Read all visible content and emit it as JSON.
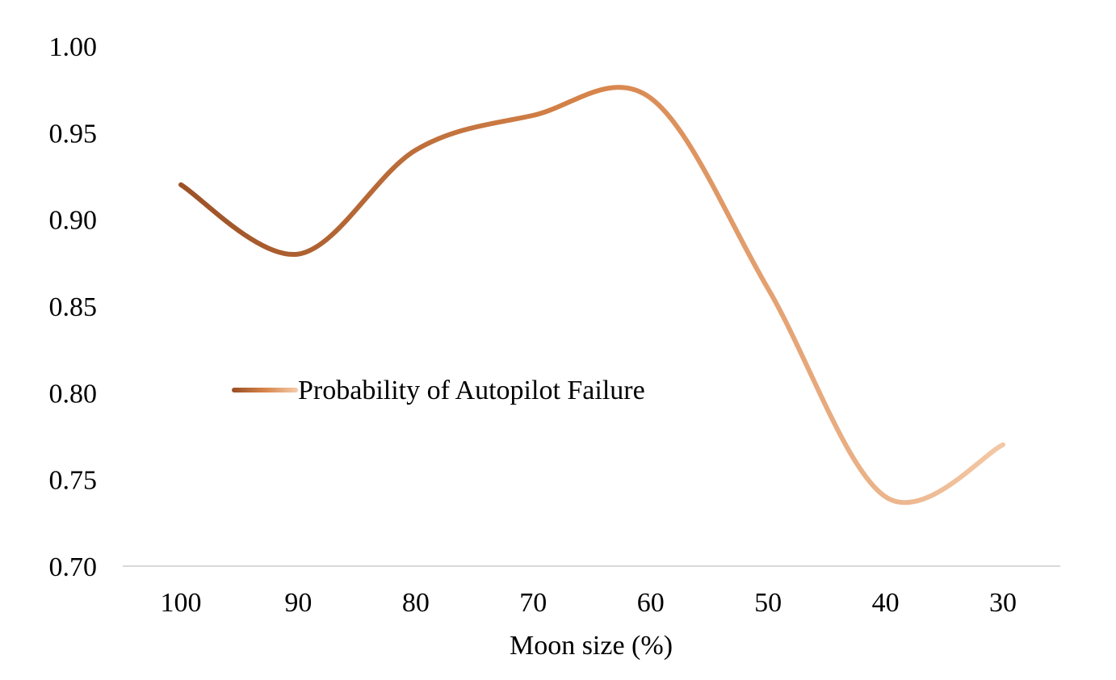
{
  "chart_data": {
    "type": "line",
    "smooth": true,
    "x": [
      "100",
      "90",
      "80",
      "70",
      "60",
      "50",
      "40",
      "30"
    ],
    "series": [
      {
        "name": "Probability of Autopilot Failure",
        "values": [
          0.92,
          0.88,
          0.94,
          0.96,
          0.97,
          0.86,
          0.74,
          0.77
        ],
        "gradient": [
          "#9c5226",
          "#d7844a",
          "#f3c8a6"
        ]
      }
    ],
    "title": "",
    "xlabel": "Moon size (%)",
    "ylabel": "",
    "ylim": [
      0.7,
      1.0
    ],
    "yticks": [
      "0.70",
      "0.75",
      "0.80",
      "0.85",
      "0.90",
      "0.95",
      "1.00"
    ],
    "grid": false,
    "legend_position": "center-left",
    "axis_line_color": "#d9d9d9"
  }
}
